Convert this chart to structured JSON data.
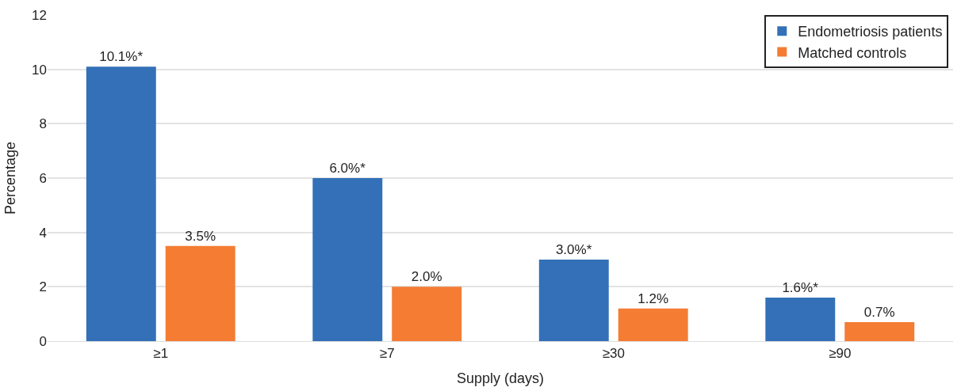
{
  "chart_data": {
    "type": "bar",
    "xlabel": "Supply (days)",
    "ylabel": "Percentage",
    "categories": [
      "≥1",
      "≥7",
      "≥30",
      "≥90"
    ],
    "series": [
      {
        "name": "Endometriosis patients",
        "color": "#3370b7",
        "values": [
          10.1,
          6.0,
          3.0,
          1.6
        ],
        "value_labels": [
          "10.1%*",
          "6.0%*",
          "3.0%*",
          "1.6%*"
        ]
      },
      {
        "name": "Matched controls",
        "color": "#f47c33",
        "values": [
          3.5,
          2.0,
          1.2,
          0.7
        ],
        "value_labels": [
          "3.5%",
          "2.0%",
          "1.2%",
          "0.7%"
        ]
      }
    ],
    "ylim": [
      0,
      12
    ],
    "yticks": [
      0,
      2,
      4,
      6,
      8,
      10,
      12
    ],
    "grid": "y",
    "legend": "top right"
  }
}
